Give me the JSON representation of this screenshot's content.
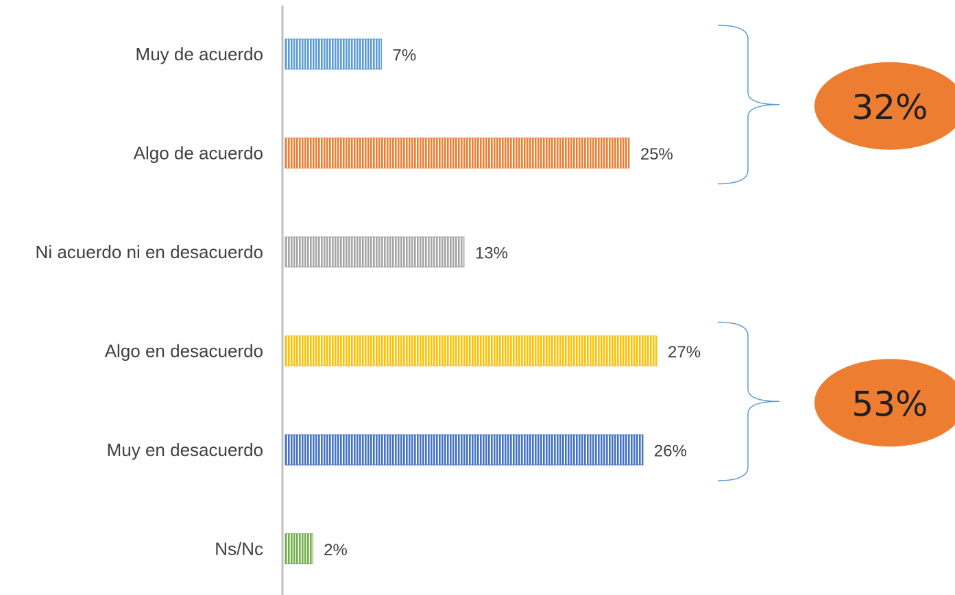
{
  "chart_data": {
    "type": "bar",
    "orientation": "horizontal",
    "categories": [
      "Muy de acuerdo",
      "Algo de acuerdo",
      "Ni acuerdo ni en desacuerdo",
      "Algo en desacuerdo",
      "Muy en desacuerdo",
      "Ns/Nc"
    ],
    "values": [
      7,
      25,
      13,
      27,
      26,
      2
    ],
    "value_labels": [
      "7%",
      "25%",
      "13%",
      "27%",
      "26%",
      "2%"
    ],
    "colors": [
      "#5b9bd5",
      "#ed7d31",
      "#a5a5a5",
      "#ffc000",
      "#4472c4",
      "#70ad47"
    ],
    "bar_pattern": "vertical-stripes",
    "xlim": [
      0,
      30
    ],
    "grid": false,
    "groups": [
      {
        "categories": [
          "Muy de acuerdo",
          "Algo de acuerdo"
        ],
        "label": "32%",
        "color": "#ed7d31"
      },
      {
        "categories": [
          "Algo en desacuerdo",
          "Muy en desacuerdo"
        ],
        "label": "53%",
        "color": "#ed7d31"
      }
    ]
  }
}
